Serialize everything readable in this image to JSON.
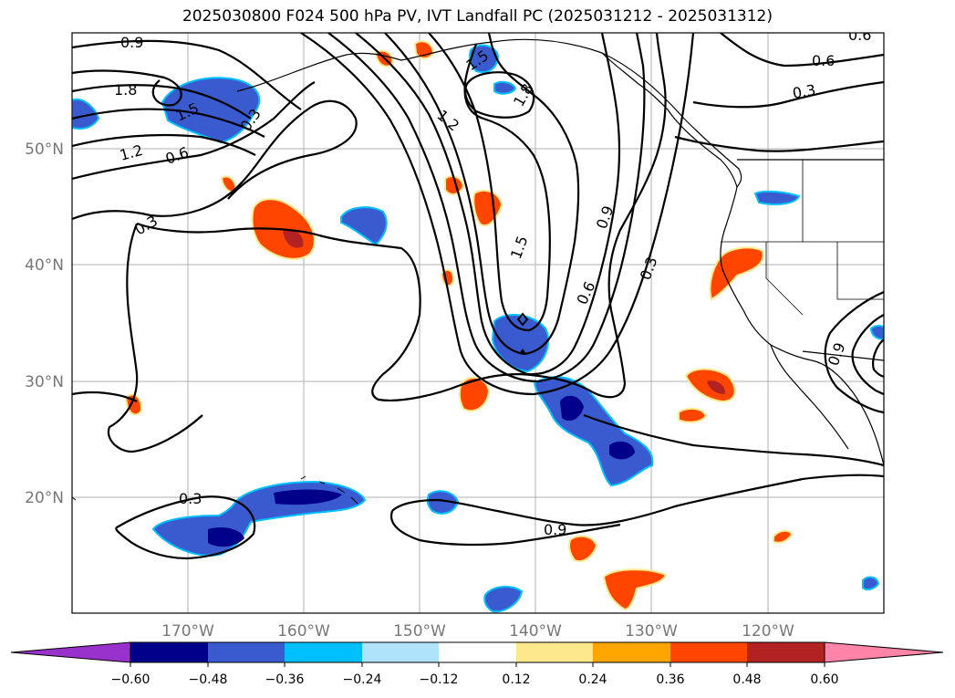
{
  "title": "2025030800 F024 500 hPa PV, IVT Landfall PC (2025031212 - 2025031312)",
  "map": {
    "lon_range": [
      -180,
      -110
    ],
    "lat_range": [
      10,
      60
    ],
    "lat_ticks": [
      "20°N",
      "30°N",
      "40°N",
      "50°N"
    ],
    "lon_ticks": [
      "170°W",
      "160°W",
      "150°W",
      "140°W",
      "130°W",
      "120°W"
    ],
    "grid": true,
    "contour_labels": [
      "0.9",
      "1.8",
      "1.5",
      "1.2",
      "0.6",
      "0.3",
      "1.2",
      "1.5",
      "1.8",
      "1.5",
      "0.9",
      "0.6",
      "0.3",
      "0.6",
      "0.3",
      "0.3",
      "0.3",
      "0.9",
      "0.6",
      "0.9"
    ]
  },
  "colorbar": {
    "tick_labels": [
      "−0.60",
      "−0.48",
      "−0.36",
      "−0.24",
      "−0.12",
      "0.12",
      "0.24",
      "0.36",
      "0.48",
      "0.60"
    ],
    "colors": {
      "under": "#9932cc",
      "bins": [
        "#00008b",
        "#3a5bcf",
        "#00bfff",
        "#aee3fb",
        "#ffffff",
        "#fde98b",
        "#ffa500",
        "#ff4500",
        "#b22222",
        "#ff85a8"
      ],
      "over": "#ff85a8"
    }
  },
  "colors": {
    "neg_dark": "#00008b",
    "neg_mid": "#3a5bcf",
    "neg_light": "#00bfff",
    "pos_light": "#fde98b",
    "pos_mid": "#ffa500",
    "pos_strong": "#ff4500",
    "pos_dark": "#b22222",
    "pos_max": "#ff85a8",
    "grid": "#b0b0b0",
    "contour": "#000000"
  }
}
